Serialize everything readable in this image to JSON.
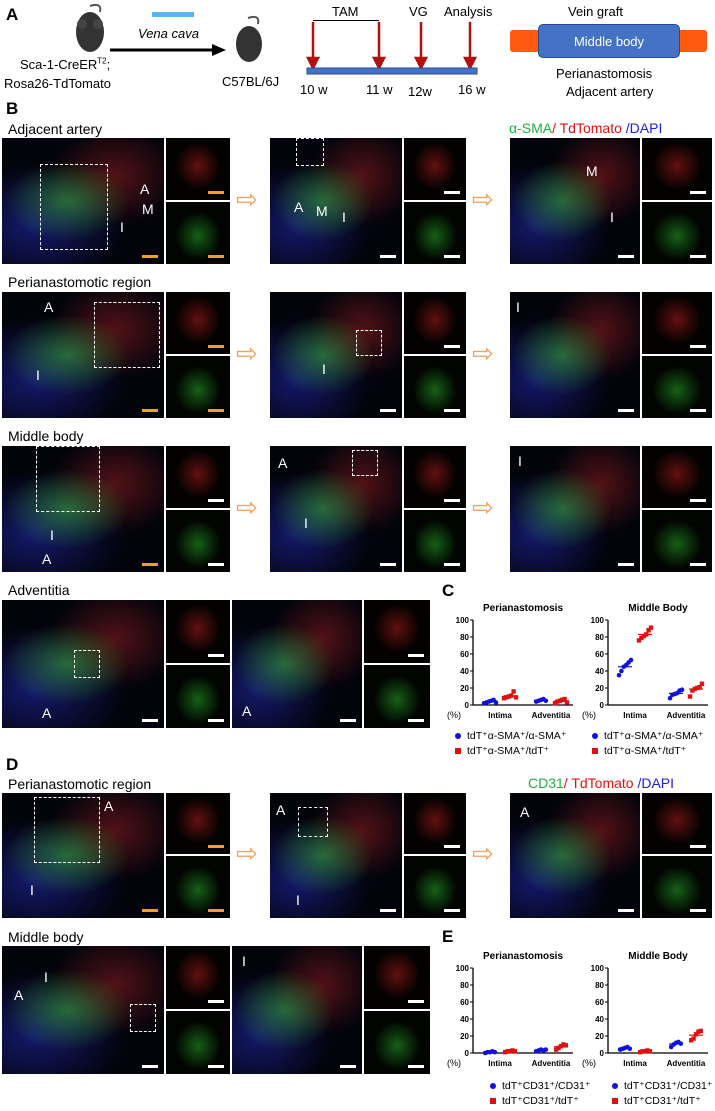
{
  "panelA": {
    "label": "A",
    "donor": "Sca-1-CreER",
    "donor_sup": "T2",
    "donor_semicolon": ";",
    "donor_line2": "Rosa26-TdTomato",
    "transfer": "Vena cava",
    "recipient": "C57BL/6J",
    "tam": "TAM",
    "vg": "VG",
    "analysis": "Analysis",
    "weeks": [
      "10 w",
      "11 w",
      "12w",
      "16 w"
    ],
    "vein_graft": "Vein graft",
    "middle_body": "Middle body",
    "perianastomosis": "Perianastomosis",
    "adjacent_artery": "Adjacent artery",
    "colors": {
      "arrow": "#b01010",
      "bar": "#4472c4",
      "graft_end": "#ff5a10",
      "accent": "#f0a060"
    }
  },
  "panelB": {
    "label": "B",
    "stain_green": "α-SMA",
    "stain_red": "/ TdTomato",
    "stain_blue": " /DAPI",
    "rows": [
      "Adjacent artery",
      "Perianastomotic region",
      "Middle  body",
      "Adventitia"
    ]
  },
  "labels": {
    "A": "A",
    "M": "M",
    "I": "I"
  },
  "panelC": {
    "label": "C"
  },
  "panelD": {
    "label": "D",
    "stain_green": "CD31",
    "stain_red": "/ TdTomato",
    "stain_blue": " /DAPI",
    "rows": [
      "Perianastomotic region",
      "Middle  body"
    ]
  },
  "panelE": {
    "label": "E"
  },
  "chart_data": [
    {
      "id": "C1",
      "type": "scatter",
      "title": "Perianastomosis",
      "ylabel": "(%)",
      "ylim": [
        0,
        100
      ],
      "yticks": [
        0,
        20,
        40,
        60,
        80,
        100
      ],
      "categories": [
        "Intima",
        "Adventitia"
      ],
      "series": [
        {
          "name": "tdT⁺α-SMA⁺/α-SMA⁺",
          "color": "#1010e0",
          "values": [
            [
              2,
              3,
              4,
              5,
              6,
              3
            ],
            [
              4,
              5,
              6,
              7,
              5
            ]
          ]
        },
        {
          "name": "tdT⁺α-SMA⁺/tdT⁺",
          "color": "#e01010",
          "values": [
            [
              8,
              9,
              10,
              11,
              16,
              9
            ],
            [
              2,
              4,
              5,
              6,
              7,
              3
            ]
          ]
        }
      ]
    },
    {
      "id": "C2",
      "type": "scatter",
      "title": "Middle Body",
      "ylabel": "(%)",
      "ylim": [
        0,
        100
      ],
      "yticks": [
        0,
        20,
        40,
        60,
        80,
        100
      ],
      "categories": [
        "Intima",
        "Adventitia"
      ],
      "series": [
        {
          "name": "tdT⁺α-SMA⁺/α-SMA⁺",
          "color": "#1010e0",
          "values": [
            [
              35,
              40,
              45,
              47,
              50,
              53
            ],
            [
              8,
              12,
              13,
              14,
              17,
              18
            ]
          ]
        },
        {
          "name": "tdT⁺α-SMA⁺/tdT⁺",
          "color": "#e01010",
          "values": [
            [
              76,
              79,
              81,
              83,
              88,
              91
            ],
            [
              10,
              17,
              19,
              20,
              21,
              25
            ]
          ]
        }
      ]
    },
    {
      "id": "E1",
      "type": "scatter",
      "title": "Perianastomosis",
      "ylabel": "(%)",
      "ylim": [
        0,
        100
      ],
      "yticks": [
        0,
        20,
        40,
        60,
        80,
        100
      ],
      "categories": [
        "Intima",
        "Adventitia"
      ],
      "series": [
        {
          "name": "tdT⁺CD31⁺/CD31⁺",
          "color": "#1010e0",
          "values": [
            [
              0,
              1,
              1,
              2,
              1
            ],
            [
              2,
              3,
              4,
              3,
              4
            ]
          ]
        },
        {
          "name": "tdT⁺CD31⁺/tdT⁺",
          "color": "#e01010",
          "values": [
            [
              1,
              2,
              2,
              3,
              2
            ],
            [
              4,
              6,
              8,
              10,
              9
            ]
          ]
        }
      ]
    },
    {
      "id": "E2",
      "type": "scatter",
      "title": "Middle Body",
      "ylabel": "(%)",
      "ylim": [
        0,
        100
      ],
      "yticks": [
        0,
        20,
        40,
        60,
        80,
        100
      ],
      "categories": [
        "Intima",
        "Adventitia"
      ],
      "series": [
        {
          "name": "tdT⁺CD31⁺/CD31⁺",
          "color": "#1010e0",
          "values": [
            [
              4,
              5,
              6,
              7,
              5
            ],
            [
              7,
              10,
              12,
              13,
              11
            ]
          ]
        },
        {
          "name": "tdT⁺CD31⁺/tdT⁺",
          "color": "#e01010",
          "values": [
            [
              1,
              2,
              2,
              3,
              2
            ],
            [
              15,
              17,
              22,
              25,
              26
            ]
          ]
        }
      ]
    }
  ]
}
